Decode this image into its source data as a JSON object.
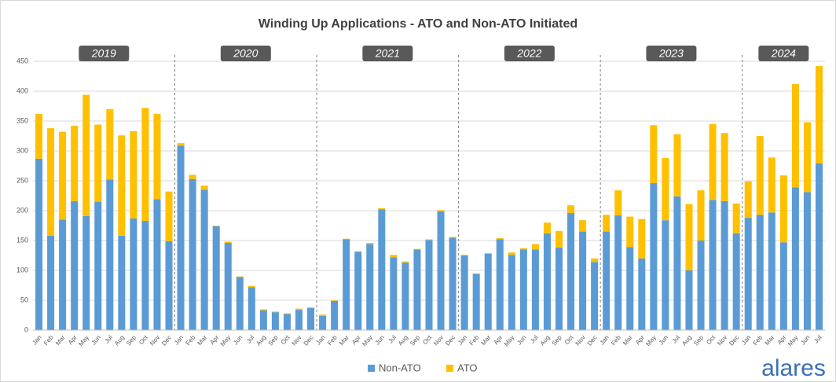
{
  "chart_data": {
    "type": "stacked_bar",
    "title": "Winding Up Applications - ATO and Non-ATO Initiated",
    "categories": [
      "Jan",
      "Feb",
      "Mar",
      "Apr",
      "May",
      "Jun",
      "Jul",
      "Aug",
      "Sep",
      "Oct",
      "Nov",
      "Dec",
      "Jan",
      "Feb",
      "Mar",
      "Apr",
      "May",
      "Jun",
      "Jul",
      "Aug",
      "Sep",
      "Oct",
      "Nov",
      "Dec",
      "Jan",
      "Feb",
      "Mar",
      "Apr",
      "May",
      "Jun",
      "Jul",
      "Aug",
      "Sep",
      "Oct",
      "Nov",
      "Dec",
      "Jan",
      "Feb",
      "Mar",
      "Apr",
      "May",
      "Jun",
      "Jul",
      "Aug",
      "Sep",
      "Oct",
      "Nov",
      "Dec",
      "Jan",
      "Feb",
      "Mar",
      "Apr",
      "May",
      "Jun",
      "Jul",
      "Aug",
      "Sep",
      "Oct",
      "Nov",
      "Dec",
      "Jan",
      "Feb",
      "Mar",
      "Apr",
      "May",
      "Jun",
      "Jul"
    ],
    "years": [
      "2019",
      "2020",
      "2021",
      "2022",
      "2023",
      "2024"
    ],
    "series": [
      {
        "name": "Non-ATO",
        "color": "#5b9bd5",
        "values": [
          287,
          158,
          185,
          216,
          191,
          215,
          252,
          158,
          187,
          183,
          219,
          149,
          309,
          253,
          235,
          174,
          146,
          89,
          72,
          33,
          30,
          27,
          34,
          37,
          24,
          49,
          152,
          131,
          144,
          202,
          122,
          113,
          135,
          151,
          199,
          155,
          125,
          94,
          128,
          152,
          126,
          135,
          135,
          162,
          138,
          196,
          165,
          114,
          165,
          192,
          139,
          120,
          246,
          184,
          224,
          100,
          150,
          218,
          216,
          162,
          188,
          193,
          197,
          147,
          239,
          231,
          279
        ]
      },
      {
        "name": "ATO",
        "color": "#ffc000",
        "values": [
          75,
          180,
          147,
          126,
          203,
          129,
          118,
          168,
          146,
          189,
          143,
          83,
          4,
          7,
          7,
          1,
          2,
          1,
          2,
          2,
          1,
          1,
          2,
          1,
          2,
          1,
          1,
          1,
          2,
          2,
          4,
          2,
          1,
          1,
          2,
          1,
          1,
          1,
          1,
          2,
          4,
          2,
          9,
          18,
          28,
          13,
          19,
          6,
          28,
          42,
          51,
          66,
          97,
          104,
          104,
          111,
          84,
          127,
          114,
          50,
          61,
          132,
          92,
          112,
          173,
          117,
          163
        ]
      }
    ],
    "ylim": [
      0,
      450
    ],
    "yticks": [
      0,
      50,
      100,
      150,
      200,
      250,
      300,
      350,
      400,
      450
    ],
    "grid": true,
    "legend": "bottom"
  },
  "logo": "alares"
}
